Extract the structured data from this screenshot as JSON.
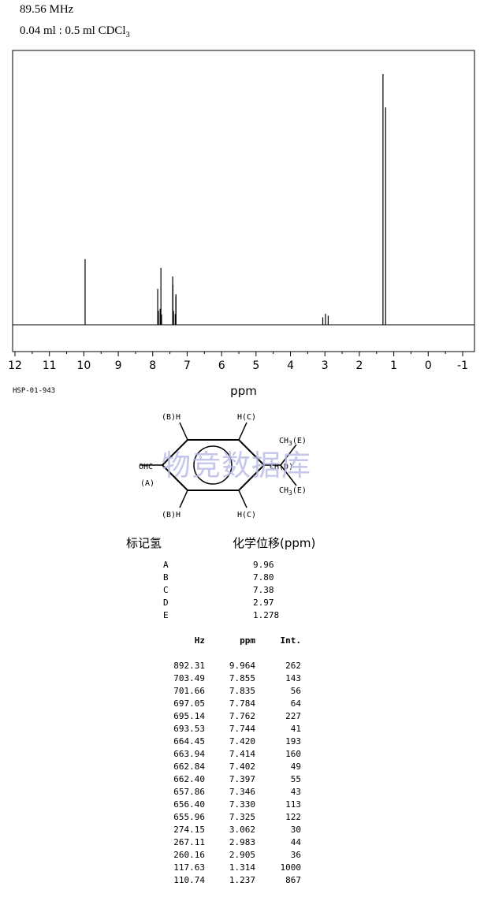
{
  "header": {
    "frequency": "89.56 MHz",
    "sample_pre": "0.04 ml : 0.5 ml CDCl",
    "sample_sub": "3"
  },
  "chart_data": {
    "type": "line",
    "title": "",
    "xlabel": "ppm",
    "ylabel": "",
    "xlim": [
      12,
      -1
    ],
    "x_reversed": true,
    "ylim": [
      0,
      1000
    ],
    "xticks": [
      12,
      11,
      10,
      9,
      8,
      7,
      6,
      5,
      4,
      3,
      2,
      1,
      0,
      -1
    ],
    "xtick_labels": [
      "12",
      "11",
      "10",
      "9",
      "8",
      "7",
      "6",
      "5",
      "4",
      "3",
      "2",
      "1",
      "0",
      "-1"
    ],
    "grid": false,
    "legend": "none",
    "line_color": "#000000",
    "peaks": [
      {
        "ppm": 9.964,
        "int": 262
      },
      {
        "ppm": 7.855,
        "int": 143
      },
      {
        "ppm": 7.835,
        "int": 56
      },
      {
        "ppm": 7.784,
        "int": 64
      },
      {
        "ppm": 7.762,
        "int": 227
      },
      {
        "ppm": 7.744,
        "int": 41
      },
      {
        "ppm": 7.42,
        "int": 193
      },
      {
        "ppm": 7.414,
        "int": 160
      },
      {
        "ppm": 7.402,
        "int": 49
      },
      {
        "ppm": 7.397,
        "int": 55
      },
      {
        "ppm": 7.346,
        "int": 43
      },
      {
        "ppm": 7.33,
        "int": 113
      },
      {
        "ppm": 7.325,
        "int": 122
      },
      {
        "ppm": 3.062,
        "int": 30
      },
      {
        "ppm": 2.983,
        "int": 44
      },
      {
        "ppm": 2.905,
        "int": 36
      },
      {
        "ppm": 1.314,
        "int": 1000
      },
      {
        "ppm": 1.237,
        "int": 867
      }
    ]
  },
  "spectrum_code": "HSP-01-943",
  "watermark": "物竞数据库",
  "structure": {
    "top_left": "(B)H",
    "top_right": "H(C)",
    "bottom_left": "(B)H",
    "bottom_right": "H(C)",
    "aldehyde": "OHC",
    "aldehyde_label": "(A)",
    "methyl_top_pre": "CH",
    "methyl_top_sub": "3",
    "methyl_top_label": "(E)",
    "methine": "CH(D)",
    "methyl_bottom_pre": "CH",
    "methyl_bottom_sub": "3",
    "methyl_bottom_label": "(E)"
  },
  "assignments": {
    "label_heading": "标记氢",
    "shift_heading": "化学位移(ppm)",
    "rows": [
      {
        "label": "A",
        "shift": "9.96"
      },
      {
        "label": "B",
        "shift": "7.80"
      },
      {
        "label": "C",
        "shift": "7.38"
      },
      {
        "label": "D",
        "shift": "2.97"
      },
      {
        "label": "E",
        "shift": "1.278"
      }
    ]
  },
  "peak_table": {
    "columns": [
      "Hz",
      "ppm",
      "Int."
    ],
    "rows": [
      [
        "892.31",
        "9.964",
        "262"
      ],
      [
        "703.49",
        "7.855",
        "143"
      ],
      [
        "701.66",
        "7.835",
        "56"
      ],
      [
        "697.05",
        "7.784",
        "64"
      ],
      [
        "695.14",
        "7.762",
        "227"
      ],
      [
        "693.53",
        "7.744",
        "41"
      ],
      [
        "664.45",
        "7.420",
        "193"
      ],
      [
        "663.94",
        "7.414",
        "160"
      ],
      [
        "662.84",
        "7.402",
        "49"
      ],
      [
        "662.40",
        "7.397",
        "55"
      ],
      [
        "657.86",
        "7.346",
        "43"
      ],
      [
        "656.40",
        "7.330",
        "113"
      ],
      [
        "655.96",
        "7.325",
        "122"
      ],
      [
        "274.15",
        "3.062",
        "30"
      ],
      [
        "267.11",
        "2.983",
        "44"
      ],
      [
        "260.16",
        "2.905",
        "36"
      ],
      [
        "117.63",
        "1.314",
        "1000"
      ],
      [
        "110.74",
        "1.237",
        "867"
      ]
    ]
  }
}
